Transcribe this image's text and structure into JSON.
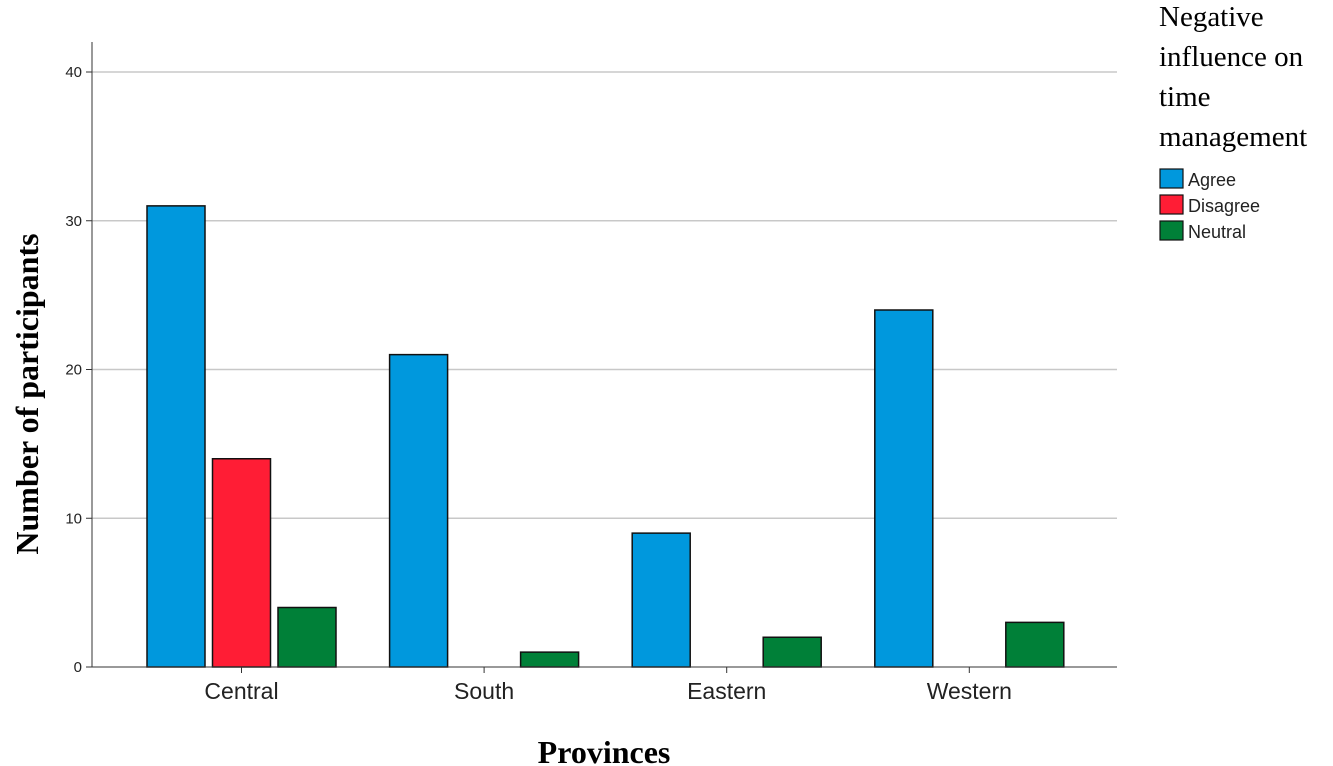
{
  "chart_data": {
    "type": "bar",
    "categories": [
      "Central",
      "South",
      "Eastern",
      "Western"
    ],
    "series": [
      {
        "name": "Agree",
        "values": [
          31,
          21,
          9,
          24
        ],
        "color": "#0098dd"
      },
      {
        "name": "Disagree",
        "values": [
          14,
          0,
          0,
          0
        ],
        "color": "#ff1d35"
      },
      {
        "name": "Neutral",
        "values": [
          4,
          1,
          2,
          3
        ],
        "color": "#008038"
      }
    ],
    "xlabel": "Provinces",
    "ylabel": "Number of participants",
    "ylim": [
      0,
      42
    ],
    "yticks": [
      0,
      10,
      20,
      30,
      40
    ],
    "grid": true,
    "legend": {
      "title_lines": [
        "Negative",
        "influence on",
        "time",
        "management"
      ],
      "placement": "right"
    }
  }
}
